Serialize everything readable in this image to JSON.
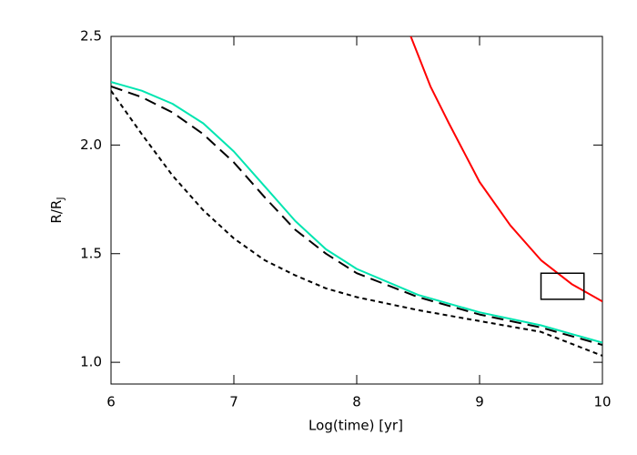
{
  "chart_data": {
    "type": "line",
    "xlabel": "Log(time)  [yr]",
    "ylabel": "R/R",
    "ylabel_subscript": "J",
    "xlim": [
      6,
      10
    ],
    "ylim": [
      0.9,
      2.5
    ],
    "xticks": [
      6,
      7,
      8,
      9,
      10
    ],
    "yticks": [
      {
        "value": 1.0,
        "label": "1.0"
      },
      {
        "value": 1.5,
        "label": "1.5"
      },
      {
        "value": 2.0,
        "label": "2.0"
      },
      {
        "value": 2.5,
        "label": "2.5"
      }
    ],
    "series": [
      {
        "color": "#00e5b0",
        "dash": "solid",
        "x": [
          6,
          6.25,
          6.5,
          6.75,
          7,
          7.25,
          7.5,
          7.75,
          8,
          8.5,
          9,
          9.5,
          10
        ],
        "values": [
          2.29,
          2.25,
          2.19,
          2.1,
          1.97,
          1.81,
          1.65,
          1.52,
          1.43,
          1.31,
          1.23,
          1.17,
          1.09
        ]
      },
      {
        "color": "#000000",
        "dash": "long",
        "x": [
          6,
          6.25,
          6.5,
          6.75,
          7,
          7.25,
          7.5,
          7.75,
          8,
          8.5,
          9,
          9.5,
          10
        ],
        "values": [
          2.27,
          2.22,
          2.15,
          2.05,
          1.92,
          1.76,
          1.61,
          1.5,
          1.41,
          1.3,
          1.22,
          1.16,
          1.08
        ]
      },
      {
        "color": "#000000",
        "dash": "short",
        "x": [
          6,
          6.25,
          6.5,
          6.75,
          7,
          7.25,
          7.5,
          7.75,
          8,
          8.5,
          9,
          9.5,
          10
        ],
        "values": [
          2.25,
          2.05,
          1.86,
          1.7,
          1.57,
          1.47,
          1.4,
          1.34,
          1.3,
          1.24,
          1.19,
          1.14,
          1.03
        ]
      },
      {
        "color": "#ff0000",
        "dash": "solid",
        "x": [
          8.44,
          8.6,
          8.75,
          9,
          9.25,
          9.5,
          9.75,
          10
        ],
        "values": [
          2.5,
          2.27,
          2.1,
          1.83,
          1.63,
          1.47,
          1.36,
          1.28
        ]
      }
    ],
    "box": {
      "x": [
        9.5,
        9.85
      ],
      "y": [
        1.29,
        1.41
      ]
    }
  }
}
